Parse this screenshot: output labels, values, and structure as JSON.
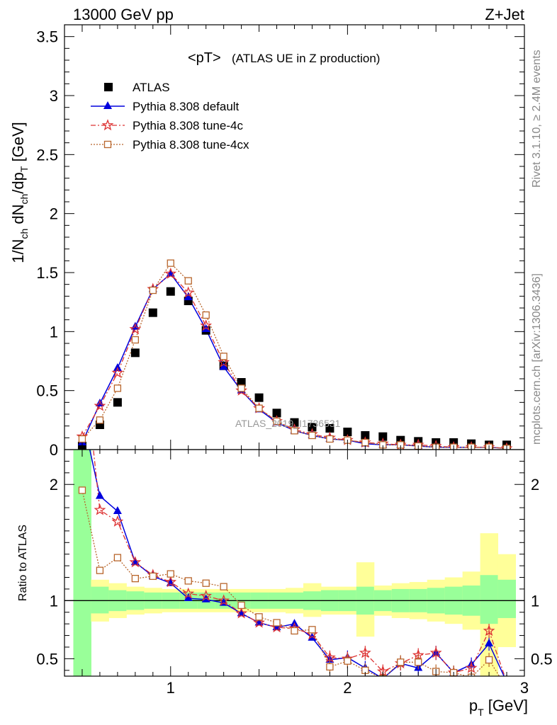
{
  "header": {
    "left": "13000 GeV pp",
    "right": "Z+Jet"
  },
  "side_text": {
    "rivet": "Rivet 3.1.10, ≥ 2.4M events",
    "mcplots": "mcplots.cern.ch [arXiv:1306.3436]"
  },
  "watermark": "ATLAS_2019_I1736531",
  "colors": {
    "atlas": "#000000",
    "default": "#0000dd",
    "tune4c": "#dd3333",
    "tune4cx": "#b8652b",
    "band_inner": "#99ff99",
    "band_outer": "#ffff99"
  },
  "chart_data": [
    {
      "type": "scatter",
      "title_main": "<pT>",
      "title_sub": "(ATLAS UE in Z production)",
      "ylabel": "1/N_ch dN_ch/dp_T [GeV]",
      "xlim": [
        0.4,
        3.0
      ],
      "ylim": [
        0,
        3.6
      ],
      "yticks": [
        "0",
        "0.5",
        "1",
        "1.5",
        "2",
        "2.5",
        "3",
        "3.5"
      ],
      "x": [
        0.5,
        0.6,
        0.7,
        0.8,
        0.9,
        1.0,
        1.1,
        1.2,
        1.3,
        1.4,
        1.5,
        1.6,
        1.7,
        1.8,
        1.9,
        2.0,
        2.1,
        2.2,
        2.3,
        2.4,
        2.5,
        2.6,
        2.7,
        2.8,
        2.9
      ],
      "series": [
        {
          "name": "ATLAS",
          "marker": "square",
          "values": [
            0.03,
            0.21,
            0.4,
            0.82,
            1.16,
            1.34,
            1.26,
            1.01,
            0.71,
            0.57,
            0.44,
            0.31,
            0.23,
            0.19,
            0.18,
            0.15,
            0.12,
            0.11,
            0.08,
            0.07,
            0.06,
            0.06,
            0.05,
            0.04,
            0.04
          ]
        },
        {
          "name": "Pythia 8.308 default",
          "marker": "triangle",
          "dash": "solid",
          "values": [
            0.06,
            0.39,
            0.69,
            1.04,
            1.36,
            1.49,
            1.29,
            1.02,
            0.7,
            0.5,
            0.34,
            0.23,
            0.16,
            0.12,
            0.09,
            0.08,
            0.05,
            0.04,
            0.04,
            0.03,
            0.02,
            0.02,
            0.02,
            0.02,
            0.01
          ]
        },
        {
          "name": "Pythia 8.308 tune-4c",
          "marker": "star",
          "dash": "dashdot",
          "values": [
            0.11,
            0.37,
            0.65,
            1.02,
            1.36,
            1.49,
            1.33,
            1.05,
            0.74,
            0.5,
            0.35,
            0.24,
            0.17,
            0.13,
            0.1,
            0.08,
            0.06,
            0.05,
            0.04,
            0.04,
            0.03,
            0.02,
            0.02,
            0.02,
            0.01
          ]
        },
        {
          "name": "Pythia 8.308 tune-4cx",
          "marker": "opensquare",
          "dash": "dotted",
          "values": [
            0.09,
            0.25,
            0.52,
            0.93,
            1.35,
            1.58,
            1.43,
            1.14,
            0.79,
            0.52,
            0.35,
            0.24,
            0.16,
            0.12,
            0.09,
            0.08,
            0.06,
            0.04,
            0.04,
            0.03,
            0.02,
            0.02,
            0.02,
            0.02,
            0.01
          ]
        }
      ]
    },
    {
      "type": "line",
      "ylabel": "Ratio to ATLAS",
      "xlabel": "p_T [GeV]",
      "xlim": [
        0.4,
        3.0
      ],
      "ylim": [
        0.35,
        2.3
      ],
      "xticks": [
        "1",
        "2",
        "3"
      ],
      "yticks": [
        "0.5",
        "1",
        "2"
      ],
      "x": [
        0.5,
        0.6,
        0.7,
        0.8,
        0.9,
        1.0,
        1.1,
        1.2,
        1.3,
        1.4,
        1.5,
        1.6,
        1.7,
        1.8,
        1.9,
        2.0,
        2.1,
        2.2,
        2.3,
        2.4,
        2.5,
        2.6,
        2.7,
        2.8,
        2.9
      ],
      "bands": {
        "inner": [
          [
            0.35,
            2.3
          ],
          [
            0.89,
            1.12
          ],
          [
            0.91,
            1.09
          ],
          [
            0.92,
            1.08
          ],
          [
            0.93,
            1.07
          ],
          [
            0.93,
            1.07
          ],
          [
            0.93,
            1.07
          ],
          [
            0.93,
            1.07
          ],
          [
            0.93,
            1.07
          ],
          [
            0.93,
            1.07
          ],
          [
            0.93,
            1.07
          ],
          [
            0.93,
            1.07
          ],
          [
            0.93,
            1.07
          ],
          [
            0.92,
            1.08
          ],
          [
            0.91,
            1.09
          ],
          [
            0.91,
            1.09
          ],
          [
            0.88,
            1.12
          ],
          [
            0.91,
            1.09
          ],
          [
            0.9,
            1.1
          ],
          [
            0.9,
            1.1
          ],
          [
            0.89,
            1.11
          ],
          [
            0.88,
            1.12
          ],
          [
            0.87,
            1.13
          ],
          [
            0.8,
            1.22
          ],
          [
            0.85,
            1.18
          ]
        ],
        "outer": [
          [
            0.35,
            2.3
          ],
          [
            0.82,
            1.18
          ],
          [
            0.85,
            1.15
          ],
          [
            0.88,
            1.12
          ],
          [
            0.89,
            1.11
          ],
          [
            0.9,
            1.1
          ],
          [
            0.9,
            1.1
          ],
          [
            0.9,
            1.1
          ],
          [
            0.9,
            1.1
          ],
          [
            0.9,
            1.1
          ],
          [
            0.9,
            1.1
          ],
          [
            0.9,
            1.1
          ],
          [
            0.89,
            1.11
          ],
          [
            0.86,
            1.15
          ],
          [
            0.88,
            1.12
          ],
          [
            0.88,
            1.12
          ],
          [
            0.69,
            1.33
          ],
          [
            0.87,
            1.13
          ],
          [
            0.85,
            1.15
          ],
          [
            0.84,
            1.16
          ],
          [
            0.82,
            1.18
          ],
          [
            0.8,
            1.2
          ],
          [
            0.75,
            1.25
          ],
          [
            0.35,
            1.58
          ],
          [
            0.6,
            1.4
          ]
        ]
      },
      "series": [
        {
          "name": "Pythia 8.308 default",
          "values": [
            2.6,
            1.9,
            1.77,
            1.33,
            1.21,
            1.15,
            1.02,
            1.01,
            0.98,
            0.89,
            0.81,
            0.77,
            0.8,
            0.68,
            0.49,
            0.51,
            0.42,
            0.33,
            0.46,
            0.42,
            0.55,
            0.38,
            0.45,
            0.63,
            0.3
          ]
        },
        {
          "name": "Pythia 8.308 tune-4c",
          "values": [
            3.2,
            1.78,
            1.68,
            1.33,
            1.22,
            1.16,
            1.06,
            1.04,
            1.0,
            0.89,
            0.81,
            0.77,
            0.76,
            0.71,
            0.51,
            0.5,
            0.55,
            0.39,
            0.46,
            0.53,
            0.55,
            0.38,
            0.42,
            0.74,
            0.3
          ]
        },
        {
          "name": "Pythia 8.308 tune-4cx",
          "values": [
            1.95,
            1.26,
            1.37,
            1.19,
            1.21,
            1.23,
            1.17,
            1.15,
            1.12,
            0.96,
            0.86,
            0.81,
            0.74,
            0.75,
            0.43,
            0.48,
            0.4,
            0.33,
            0.47,
            0.47,
            0.39,
            0.38,
            0.34,
            0.49,
            0.25
          ]
        }
      ]
    }
  ]
}
